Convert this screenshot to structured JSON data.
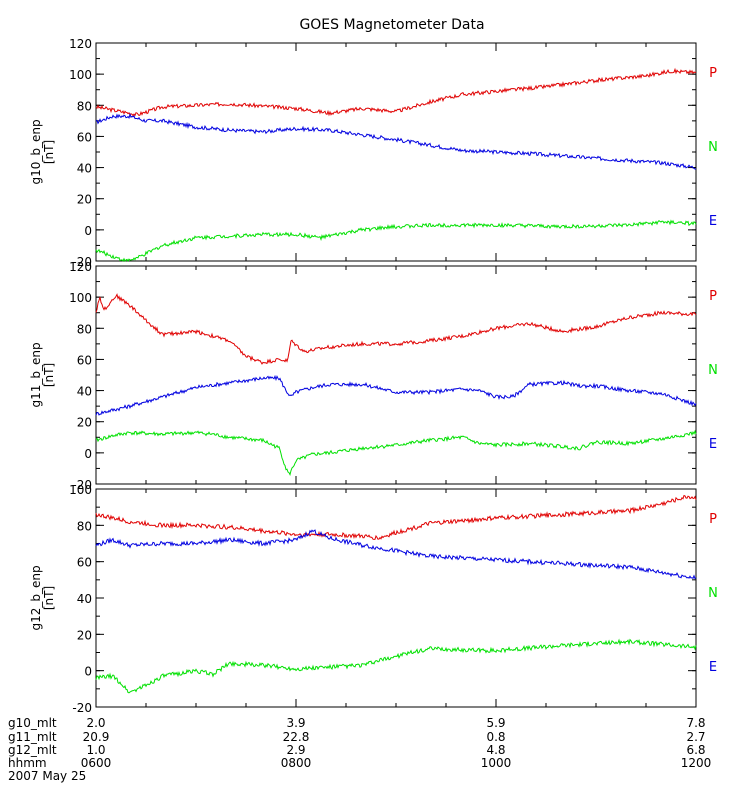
{
  "chart_data": {
    "type": "line",
    "title": "GOES Magnetometer Data",
    "x_range": [
      360,
      720
    ],
    "x_unit": "minutes after 00:00 UT",
    "panels": [
      {
        "ylabel": "g10_b_enp",
        "yunit": "[nT]",
        "ylim": [
          -20,
          120
        ],
        "yticks": [
          -20,
          0,
          20,
          40,
          60,
          80,
          100,
          120
        ],
        "series": [
          {
            "name": "P",
            "color": "#e00000",
            "x": [
              360,
              375,
              385,
              400,
              440,
              480,
              500,
              520,
              540,
              560,
              580,
              600,
              630,
              660,
              690,
              705,
              720
            ],
            "y": [
              79,
              76,
              74,
              79,
              81,
              78,
              75,
              78,
              76,
              82,
              87,
              89,
              92,
              96,
              99,
              102,
              101
            ]
          },
          {
            "name": "N",
            "color": "#00e000",
            "x": [
              360,
              370,
              378,
              385,
              400,
              420,
              460,
              480,
              495,
              505,
              520,
              540,
              560,
              600,
              640,
              680,
              700,
              720
            ],
            "y": [
              -13,
              -17,
              -20,
              -18,
              -10,
              -5,
              -3,
              -3,
              -5,
              -3,
              0,
              2,
              3,
              3,
              2,
              3,
              5,
              4
            ]
          },
          {
            "name": "E",
            "color": "#0000e0",
            "x": [
              360,
              370,
              380,
              390,
              400,
              420,
              440,
              460,
              480,
              500,
              540,
              580,
              620,
              660,
              700,
              720
            ],
            "y": [
              69,
              73,
              73,
              70,
              70,
              66,
              64,
              63,
              65,
              64,
              58,
              51,
              49,
              46,
              43,
              40
            ]
          }
        ]
      },
      {
        "ylabel": "g11_b_enp",
        "yunit": "[nT]",
        "ylim": [
          -20,
          120
        ],
        "yticks": [
          -20,
          0,
          20,
          40,
          60,
          80,
          100,
          120
        ],
        "series": [
          {
            "name": "P",
            "color": "#e00000",
            "x": [
              360,
              362,
              365,
              368,
              372,
              380,
              390,
              400,
              420,
              440,
              450,
              460,
              470,
              475,
              477,
              485,
              500,
              520,
              540,
              560,
              580,
              600,
              620,
              640,
              660,
              680,
              700,
              720
            ],
            "y": [
              90,
              100,
              92,
              96,
              101,
              95,
              85,
              76,
              78,
              72,
              62,
              58,
              60,
              59,
              72,
              65,
              68,
              70,
              70,
              72,
              75,
              80,
              83,
              78,
              81,
              87,
              90,
              89
            ]
          },
          {
            "name": "N",
            "color": "#00e000",
            "x": [
              360,
              370,
              380,
              400,
              420,
              430,
              440,
              460,
              470,
              474,
              476,
              480,
              490,
              500,
              520,
              540,
              560,
              580,
              590,
              600,
              620,
              640,
              650,
              660,
              680,
              700,
              720
            ],
            "y": [
              8,
              11,
              13,
              12,
              13,
              12,
              10,
              8,
              3,
              -10,
              -14,
              -5,
              -1,
              0,
              3,
              5,
              8,
              10,
              6,
              5,
              6,
              4,
              3,
              7,
              6,
              9,
              13
            ]
          },
          {
            "name": "E",
            "color": "#0000e0",
            "x": [
              360,
              380,
              400,
              420,
              440,
              460,
              470,
              474,
              477,
              480,
              490,
              500,
              520,
              540,
              560,
              580,
              590,
              600,
              610,
              620,
              640,
              650,
              660,
              680,
              700,
              720
            ],
            "y": [
              25,
              30,
              36,
              42,
              45,
              48,
              48,
              40,
              36,
              39,
              42,
              44,
              44,
              39,
              39,
              41,
              40,
              36,
              36,
              44,
              45,
              43,
              43,
              40,
              38,
              31
            ]
          }
        ]
      },
      {
        "ylabel": "g12_b_enp",
        "yunit": "[nT]",
        "ylim": [
          -20,
          100
        ],
        "yticks": [
          -20,
          0,
          20,
          40,
          60,
          80,
          100
        ],
        "series": [
          {
            "name": "P",
            "color": "#e00000",
            "x": [
              360,
              380,
              400,
              420,
              440,
              460,
              480,
              500,
              520,
              530,
              540,
              560,
              600,
              640,
              680,
              700,
              715,
              720
            ],
            "y": [
              86,
              82,
              80,
              80,
              79,
              77,
              75,
              75,
              74,
              73,
              76,
              81,
              84,
              86,
              88,
              92,
              96,
              95
            ]
          },
          {
            "name": "N",
            "color": "#00e000",
            "x": [
              360,
              370,
              375,
              380,
              390,
              400,
              420,
              430,
              440,
              460,
              480,
              500,
              520,
              540,
              560,
              600,
              640,
              680,
              720
            ],
            "y": [
              -4,
              -3,
              -7,
              -12,
              -8,
              -3,
              0,
              -2,
              4,
              3,
              1,
              2,
              3,
              8,
              12,
              11,
              14,
              16,
              13
            ]
          },
          {
            "name": "E",
            "color": "#0000e0",
            "x": [
              360,
              370,
              380,
              400,
              420,
              440,
              460,
              480,
              490,
              500,
              520,
              560,
              600,
              640,
              680,
              700,
              720
            ],
            "y": [
              69,
              72,
              69,
              70,
              70,
              72,
              70,
              72,
              77,
              73,
              69,
              63,
              61,
              59,
              57,
              54,
              51
            ]
          }
        ]
      }
    ],
    "x_axis_rows": [
      {
        "name": "g10_mlt",
        "values": [
          "2.0",
          "3.9",
          "5.9",
          "7.8"
        ]
      },
      {
        "name": "g11_mlt",
        "values": [
          "20.9",
          "22.8",
          "0.8",
          "2.7"
        ]
      },
      {
        "name": "g12_mlt",
        "values": [
          "1.0",
          "2.9",
          "4.8",
          "6.8"
        ]
      },
      {
        "name": "hhmm",
        "values": [
          "0600",
          "0800",
          "1000",
          "1200"
        ]
      }
    ],
    "x_tick_minutes": [
      360,
      480,
      600,
      720
    ],
    "date": "2007 May 25",
    "series_tags": [
      "P",
      "N",
      "E"
    ],
    "series_tag_colors": [
      "#e00000",
      "#00e000",
      "#0000e0"
    ]
  }
}
